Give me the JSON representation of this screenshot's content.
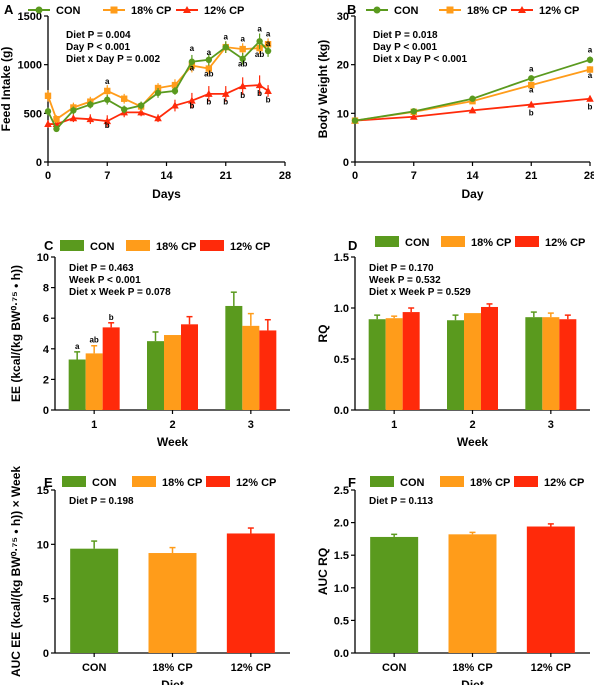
{
  "colors": {
    "con": "#5a9a1e",
    "cp18": "#ff9c1a",
    "cp12": "#ff2a0a",
    "axis": "#000000"
  },
  "legend_labels": [
    "CON",
    "18% CP",
    "12% CP"
  ],
  "chart_data": [
    {
      "panel": "A",
      "type": "line",
      "xlabel": "Days",
      "ylabel": "Feed Intake (g)",
      "xlim": [
        0,
        28
      ],
      "ylim": [
        0,
        1500
      ],
      "xticks": [
        0,
        7,
        14,
        21,
        28
      ],
      "yticks": [
        0,
        500,
        1000,
        1500
      ],
      "stats": [
        "Diet P = 0.004",
        "Day P < 0.001",
        "Diet x Day P = 0.002"
      ],
      "series": [
        {
          "name": "CON",
          "key": "con",
          "x": [
            0,
            1,
            3,
            5,
            7,
            9,
            11,
            13,
            15,
            17,
            19,
            21,
            23,
            25,
            26
          ],
          "y": [
            520,
            340,
            530,
            590,
            640,
            540,
            580,
            710,
            730,
            1030,
            1050,
            1180,
            1060,
            1240,
            1140
          ],
          "err": [
            40,
            30,
            40,
            40,
            50,
            40,
            40,
            50,
            40,
            70,
            60,
            60,
            60,
            80,
            60
          ]
        },
        {
          "name": "18% CP",
          "key": "cp18",
          "x": [
            0,
            1,
            3,
            5,
            7,
            9,
            11,
            13,
            15,
            17,
            19,
            21,
            23,
            25,
            26
          ],
          "y": [
            680,
            440,
            560,
            620,
            730,
            650,
            570,
            760,
            790,
            990,
            960,
            1180,
            1160,
            1170,
            1210
          ],
          "err": [
            60,
            40,
            50,
            50,
            60,
            50,
            50,
            50,
            60,
            70,
            60,
            60,
            60,
            60,
            60
          ]
        },
        {
          "name": "12% CP",
          "key": "cp12",
          "x": [
            0,
            1,
            3,
            5,
            7,
            9,
            11,
            13,
            15,
            17,
            19,
            21,
            23,
            25,
            26
          ],
          "y": [
            390,
            390,
            450,
            440,
            420,
            510,
            510,
            450,
            580,
            630,
            700,
            700,
            780,
            790,
            730
          ],
          "err": [
            40,
            40,
            40,
            50,
            60,
            50,
            40,
            40,
            60,
            80,
            80,
            80,
            90,
            100,
            60
          ]
        }
      ],
      "annotations": [
        {
          "x": 7,
          "y": 800,
          "text": "a"
        },
        {
          "x": 7,
          "y": 350,
          "text": "b"
        },
        {
          "x": 17,
          "y": 1140,
          "text": "a"
        },
        {
          "x": 17,
          "y": 940,
          "text": "a"
        },
        {
          "x": 17,
          "y": 550,
          "text": "b"
        },
        {
          "x": 19,
          "y": 1100,
          "text": "a"
        },
        {
          "x": 19,
          "y": 880,
          "text": "ab"
        },
        {
          "x": 19,
          "y": 590,
          "text": "b"
        },
        {
          "x": 21,
          "y": 1260,
          "text": "a"
        },
        {
          "x": 21,
          "y": 590,
          "text": "b"
        },
        {
          "x": 23,
          "y": 1240,
          "text": "a"
        },
        {
          "x": 23,
          "y": 980,
          "text": "ab"
        },
        {
          "x": 23,
          "y": 660,
          "text": "b"
        },
        {
          "x": 25,
          "y": 1340,
          "text": "a"
        },
        {
          "x": 25,
          "y": 1080,
          "text": "ab"
        },
        {
          "x": 25,
          "y": 680,
          "text": "b"
        },
        {
          "x": 26,
          "y": 1290,
          "text": "a"
        },
        {
          "x": 26,
          "y": 1190,
          "text": "a"
        },
        {
          "x": 26,
          "y": 610,
          "text": "b"
        }
      ]
    },
    {
      "panel": "B",
      "type": "line",
      "xlabel": "Day",
      "ylabel": "Body Weight (kg)",
      "xlim": [
        0,
        28
      ],
      "ylim": [
        0,
        30
      ],
      "xticks": [
        0,
        7,
        14,
        21,
        28
      ],
      "yticks": [
        0,
        10,
        20,
        30
      ],
      "stats": [
        "Diet P = 0.018",
        "Day P < 0.001",
        "Diet x Day P < 0.001"
      ],
      "series": [
        {
          "name": "CON",
          "key": "con",
          "x": [
            0,
            7,
            14,
            21,
            28
          ],
          "y": [
            8.5,
            10.4,
            13.0,
            17.2,
            21.0
          ],
          "err": [
            0.3,
            0.3,
            0.5,
            0.6,
            0.7
          ]
        },
        {
          "name": "18% CP",
          "key": "cp18",
          "x": [
            0,
            7,
            14,
            21,
            28
          ],
          "y": [
            8.5,
            10.3,
            12.5,
            15.8,
            19.0
          ],
          "err": [
            0.3,
            0.3,
            0.4,
            0.6,
            0.7
          ]
        },
        {
          "name": "12% CP",
          "key": "cp12",
          "x": [
            0,
            7,
            14,
            21,
            28
          ],
          "y": [
            8.5,
            9.3,
            10.6,
            11.8,
            13.0
          ],
          "err": [
            0.3,
            0.3,
            0.4,
            0.5,
            0.6
          ]
        }
      ],
      "annotations": [
        {
          "x": 21,
          "y": 18.6,
          "text": "a"
        },
        {
          "x": 21,
          "y": 14.3,
          "text": "a"
        },
        {
          "x": 21,
          "y": 9.6,
          "text": "b"
        },
        {
          "x": 28,
          "y": 22.5,
          "text": "a"
        },
        {
          "x": 28,
          "y": 17.3,
          "text": "a"
        },
        {
          "x": 28,
          "y": 10.8,
          "text": "b"
        }
      ]
    },
    {
      "panel": "C",
      "type": "bar",
      "xlabel": "Week",
      "ylabel": "EE (kcal/(kg BW^0.75 • h))",
      "categories": [
        "1",
        "2",
        "3"
      ],
      "ylim": [
        0,
        10
      ],
      "yticks": [
        0,
        2,
        4,
        6,
        8,
        10
      ],
      "stats": [
        "Diet P = 0.463",
        "Week P < 0.001",
        "Diet x Week P = 0.078"
      ],
      "series": [
        {
          "name": "CON",
          "key": "con",
          "values": [
            3.3,
            4.5,
            6.8
          ],
          "err": [
            0.5,
            0.6,
            0.9
          ]
        },
        {
          "name": "18% CP",
          "key": "cp18",
          "values": [
            3.7,
            4.9,
            5.5
          ],
          "err": [
            0.5,
            0.0,
            0.8
          ]
        },
        {
          "name": "12% CP",
          "key": "cp12",
          "values": [
            5.4,
            5.6,
            5.2
          ],
          "err": [
            0.3,
            0.5,
            0.7
          ]
        }
      ],
      "annotations": [
        {
          "cat": 0,
          "series": 0,
          "text": "a"
        },
        {
          "cat": 0,
          "series": 1,
          "text": "ab"
        },
        {
          "cat": 0,
          "series": 2,
          "text": "b"
        }
      ]
    },
    {
      "panel": "D",
      "type": "bar",
      "xlabel": "Week",
      "ylabel": "RQ",
      "categories": [
        "1",
        "2",
        "3"
      ],
      "ylim": [
        0,
        1.5
      ],
      "yticks": [
        0,
        0.5,
        1.0,
        1.5
      ],
      "stats": [
        "Diet P = 0.170",
        "Week P = 0.532",
        "Diet x Week P = 0.529"
      ],
      "series": [
        {
          "name": "CON",
          "key": "con",
          "values": [
            0.89,
            0.88,
            0.91
          ],
          "err": [
            0.04,
            0.05,
            0.05
          ]
        },
        {
          "name": "18% CP",
          "key": "cp18",
          "values": [
            0.9,
            0.95,
            0.91
          ],
          "err": [
            0.02,
            0.0,
            0.04
          ]
        },
        {
          "name": "12% CP",
          "key": "cp12",
          "values": [
            0.96,
            1.01,
            0.89
          ],
          "err": [
            0.04,
            0.03,
            0.04
          ]
        }
      ],
      "annotations": []
    },
    {
      "panel": "E",
      "type": "bar",
      "xlabel": "Diet",
      "ylabel": "AUC EE (kcal/(kg BW^0.75 • h)) × Week",
      "categories": [
        "CON",
        "18% CP",
        "12% CP"
      ],
      "ylim": [
        0,
        15
      ],
      "yticks": [
        0,
        5,
        10,
        15
      ],
      "stats": [
        "Diet P = 0.198"
      ],
      "series": [
        {
          "name": "CON",
          "key": "con",
          "values": [
            9.6,
            null,
            null
          ],
          "err": [
            0.7,
            0,
            0
          ]
        },
        {
          "name": "18% CP",
          "key": "cp18",
          "values": [
            null,
            9.2,
            null
          ],
          "err": [
            0,
            0.5,
            0
          ]
        },
        {
          "name": "12% CP",
          "key": "cp12",
          "values": [
            null,
            null,
            11.0
          ],
          "err": [
            0,
            0,
            0.5
          ]
        }
      ],
      "annotations": []
    },
    {
      "panel": "F",
      "type": "bar",
      "xlabel": "Diet",
      "ylabel": "AUC RQ",
      "categories": [
        "CON",
        "18% CP",
        "12% CP"
      ],
      "ylim": [
        0,
        2.5
      ],
      "yticks": [
        0,
        0.5,
        1.0,
        1.5,
        2.0,
        2.5
      ],
      "stats": [
        "Diet P = 0.113"
      ],
      "series": [
        {
          "name": "CON",
          "key": "con",
          "values": [
            1.78,
            null,
            null
          ],
          "err": [
            0.04,
            0,
            0
          ]
        },
        {
          "name": "18% CP",
          "key": "cp18",
          "values": [
            null,
            1.82,
            null
          ],
          "err": [
            0,
            0.03,
            0
          ]
        },
        {
          "name": "12% CP",
          "key": "cp12",
          "values": [
            null,
            null,
            1.94
          ],
          "err": [
            0,
            0,
            0.04
          ]
        }
      ],
      "annotations": []
    }
  ]
}
